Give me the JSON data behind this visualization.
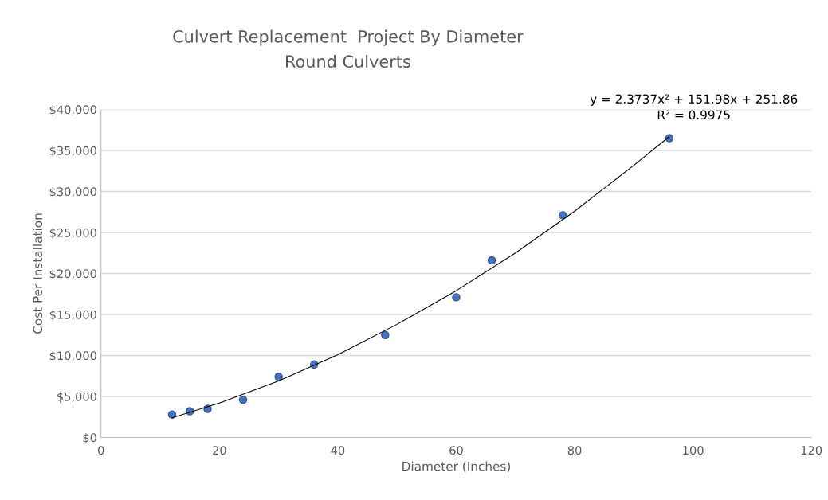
{
  "chart_data": {
    "type": "scatter",
    "title": "Culvert Replacement  Project By Diameter",
    "subtitle": "Round Culverts",
    "xlabel": "Diameter (Inches)",
    "ylabel": "Cost Per Installation",
    "x": [
      12,
      15,
      18,
      24,
      30,
      36,
      48,
      60,
      66,
      78,
      96
    ],
    "series": [
      {
        "marker": "circle",
        "color": "#4472c4",
        "values": [
          2800,
          3200,
          3500,
          4600,
          7400,
          8900,
          12500,
          17100,
          21600,
          27100,
          36500
        ]
      },
      {
        "type": "line",
        "color": "#000000",
        "x": [
          12,
          20,
          30,
          40,
          50,
          60,
          70,
          80,
          90,
          96
        ],
        "values": [
          2400,
          4200,
          6900,
          10100,
          13800,
          17900,
          22500,
          27600,
          33200,
          36700
        ]
      }
    ],
    "annotations": [
      "y = 2.3737x² + 151.98x + 251.86",
      "R² = 0.9975"
    ],
    "xlim": [
      0,
      120
    ],
    "xticks": [
      0,
      20,
      40,
      60,
      80,
      100,
      120
    ],
    "ylim": [
      0,
      40000
    ],
    "yticks": [
      {
        "value": 0,
        "label": "$0"
      },
      {
        "value": 5000,
        "label": "$5,000"
      },
      {
        "value": 10000,
        "label": "$10,000"
      },
      {
        "value": 15000,
        "label": "$15,000"
      },
      {
        "value": 20000,
        "label": "$20,000"
      },
      {
        "value": 25000,
        "label": "$25,000"
      },
      {
        "value": 30000,
        "label": "$30,000"
      },
      {
        "value": 35000,
        "label": "$35,000"
      },
      {
        "value": 40000,
        "label": "$40,000"
      }
    ],
    "grid": "y",
    "legend": false
  }
}
